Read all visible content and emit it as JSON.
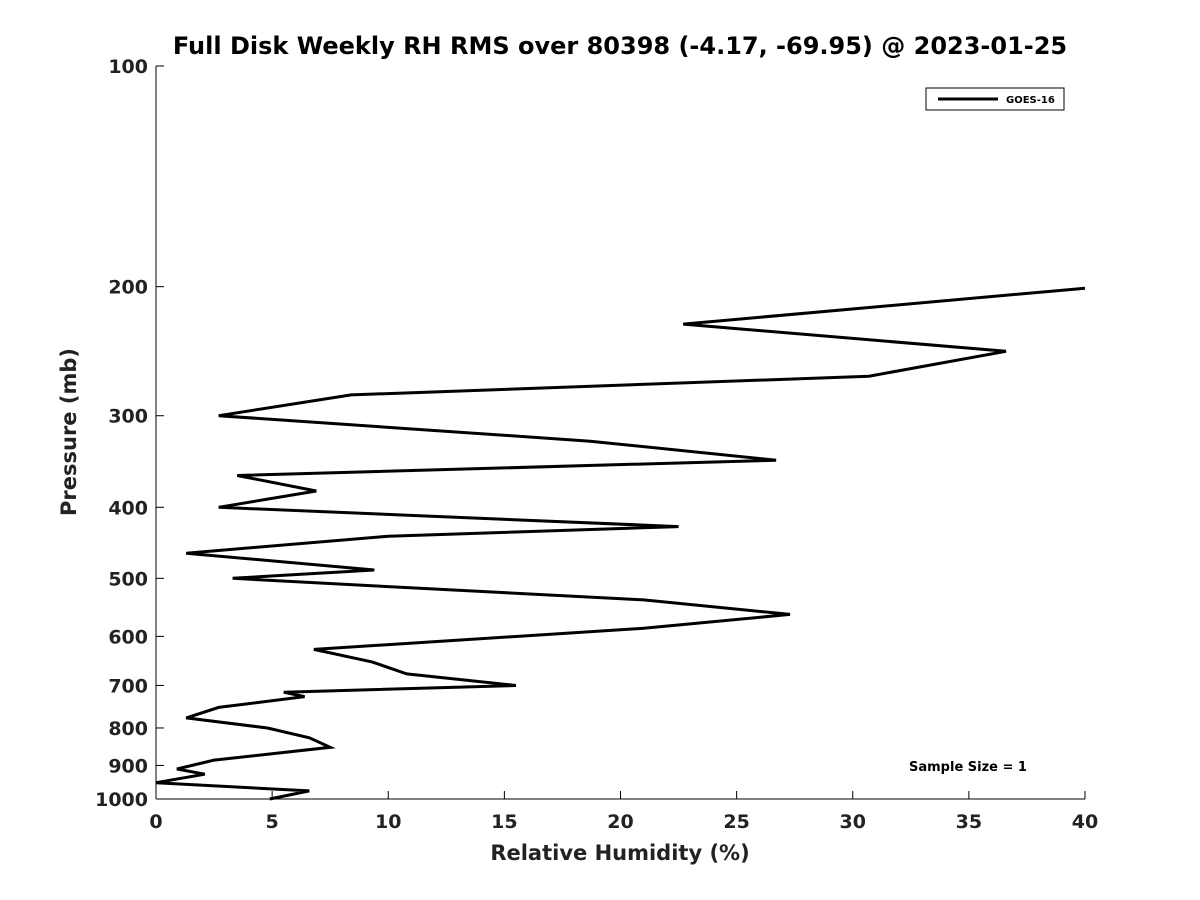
{
  "chart_data": {
    "type": "line",
    "title": "Full Disk Weekly RH RMS over 80398 (-4.17, -69.95) @ 2023-01-25",
    "xlabel": "Relative Humidity (%)",
    "ylabel": "Pressure (mb)",
    "xlim": [
      0,
      40
    ],
    "ylim": [
      100,
      1000
    ],
    "yscale": "log",
    "y_reversed": true,
    "x_ticks": [
      0,
      5,
      10,
      15,
      20,
      25,
      30,
      35,
      40
    ],
    "y_ticks": [
      100,
      200,
      300,
      400,
      500,
      600,
      700,
      800,
      900,
      1000
    ],
    "grid": false,
    "legend": {
      "position": "top-right",
      "entries": [
        "GOES-16"
      ]
    },
    "annotation": "Sample Size = 1",
    "series": [
      {
        "name": "GOES-16",
        "color": "#000000",
        "x": [
          4.9,
          6.6,
          0.0,
          2.1,
          0.9,
          2.5,
          7.5,
          6.6,
          4.8,
          1.3,
          2.7,
          6.4,
          5.5,
          15.5,
          10.8,
          9.3,
          6.8,
          21.0,
          27.3,
          21.0,
          9.4,
          3.3,
          9.4,
          1.3,
          10.0,
          22.5,
          2.7,
          6.9,
          3.5,
          26.7,
          18.7,
          2.7,
          8.4,
          30.7,
          36.6,
          22.7,
          40.0
        ],
        "y": [
          1000,
          975,
          950,
          925,
          910,
          885,
          850,
          825,
          800,
          775,
          750,
          725,
          715,
          700,
          675,
          650,
          625,
          585,
          560,
          535,
          512,
          500,
          487,
          462,
          438,
          425,
          400,
          380,
          362,
          345,
          325,
          300,
          281,
          265,
          245,
          225,
          201
        ]
      }
    ]
  }
}
